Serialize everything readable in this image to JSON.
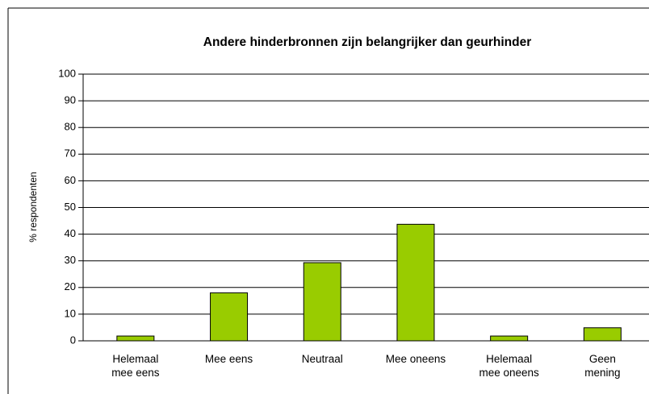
{
  "chart_data": {
    "type": "bar",
    "title": "Andere hinderbronnen zijn belangrijker dan geurhinder",
    "y_label": "% respondenten",
    "categories": [
      "Helemaal\nmee eens",
      "Mee eens",
      "Neutraal",
      "Mee oneens",
      "Helemaal\nmee oneens",
      "Geen\nmening"
    ],
    "values": [
      1.8,
      18,
      29.3,
      43.7,
      1.8,
      4.9
    ],
    "color": "#99cc00",
    "ylim": [
      0,
      100
    ],
    "yticks": [
      0,
      10,
      20,
      30,
      40,
      50,
      60,
      70,
      80,
      90,
      100
    ],
    "grid": true
  }
}
